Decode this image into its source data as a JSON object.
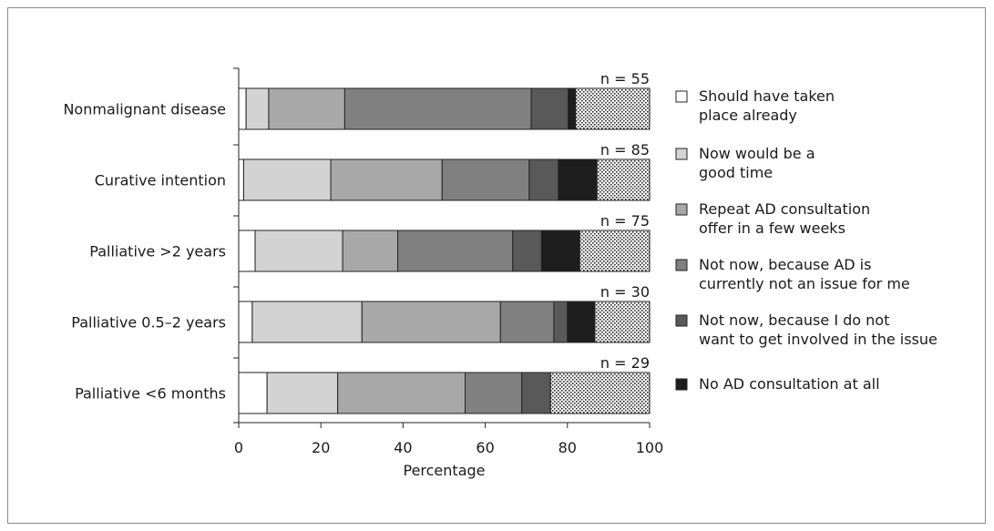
{
  "chart_data": {
    "type": "bar",
    "orientation": "horizontal",
    "stacked": true,
    "categories": [
      "Nonmalignant disease",
      "Curative intention",
      "Palliative >2 years",
      "Palliative 0.5–2 years",
      "Palliative <6 months"
    ],
    "n_labels": [
      "n = 55",
      "n = 85",
      "n = 75",
      "n = 30",
      "n = 29"
    ],
    "series": [
      {
        "name": "Should have taken place already",
        "legend_lines": [
          "Should have taken",
          "place already"
        ],
        "color": "#ffffff",
        "values": [
          1.8,
          1.2,
          4.0,
          3.3,
          6.9
        ]
      },
      {
        "name": "Now would be a good time",
        "legend_lines": [
          "Now would be a",
          "good time"
        ],
        "color": "#d3d3d3",
        "values": [
          5.5,
          21.2,
          21.3,
          26.7,
          17.2
        ]
      },
      {
        "name": "Repeat AD consultation offer in a few weeks",
        "legend_lines": [
          "Repeat AD consultation",
          "offer in a few weeks"
        ],
        "color": "#a8a8a8",
        "values": [
          18.5,
          27.1,
          13.4,
          33.7,
          31.0
        ]
      },
      {
        "name": "Not now, because AD is currently not an issue for me",
        "legend_lines": [
          "Not now, because AD is",
          "currently not an issue for me"
        ],
        "color": "#808080",
        "values": [
          45.4,
          21.2,
          28.0,
          13.0,
          13.8
        ]
      },
      {
        "name": "Not now, because I do not want to get involved in the issue",
        "legend_lines": [
          "Not now, because I do not",
          "want to get involved in the issue"
        ],
        "color": "#595959",
        "values": [
          9.0,
          7.1,
          7.0,
          3.3,
          7.0
        ]
      },
      {
        "name": "No AD consultation at all",
        "legend_lines": [
          "No AD consultation at all"
        ],
        "color": "#1e1e1e",
        "values": [
          1.8,
          9.4,
          9.3,
          6.7,
          0.0
        ]
      },
      {
        "name": "",
        "legend_lines": [],
        "color": "dotted",
        "values": [
          18.0,
          12.8,
          17.0,
          13.3,
          24.1
        ]
      }
    ],
    "xlabel": "Percentage",
    "xlim": [
      0,
      100
    ],
    "xticks": [
      "0",
      "20",
      "40",
      "60",
      "80",
      "100"
    ],
    "legend_position": "right",
    "grid": false
  }
}
